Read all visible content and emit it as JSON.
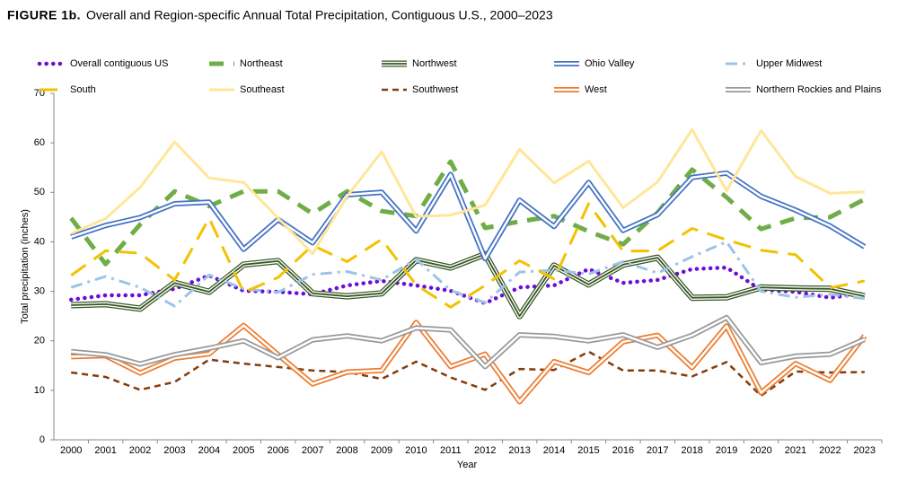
{
  "chart_data": {
    "type": "line",
    "figure_label": "FIGURE 1b.",
    "title": "Overall and Region-specific Annual Total Precipitation, Contiguous U.S., 2000–2023",
    "x_label": "Year",
    "y_label": "Total precipitation (inches)",
    "categories": [
      "2000",
      "2001",
      "2002",
      "2003",
      "2004",
      "2005",
      "2006",
      "2007",
      "2008",
      "2009",
      "2010",
      "2011",
      "2012",
      "2013",
      "2014",
      "2015",
      "2016",
      "2017",
      "2018",
      "2019",
      "2020",
      "2021",
      "2022",
      "2023"
    ],
    "ylim": [
      0,
      70
    ],
    "yticks": [
      0,
      10,
      20,
      30,
      40,
      50,
      60,
      70
    ],
    "grid": false,
    "legend": "top",
    "series": [
      {
        "name": "Overall contiguous US",
        "color": "#6a0dd8",
        "style": "dotted",
        "values": [
          28.3,
          29.2,
          29.2,
          30.5,
          33.2,
          30.1,
          29.9,
          29.4,
          31.2,
          32.1,
          31.2,
          30.1,
          27.6,
          30.8,
          31.2,
          34.5,
          31.7,
          32.3,
          34.5,
          34.8,
          30.3,
          29.9,
          28.7,
          29.6
        ]
      },
      {
        "name": "Northeast",
        "color": "#70ad47",
        "style": "dashed",
        "values": [
          44.8,
          35.5,
          43.5,
          50.2,
          47.2,
          50.2,
          50.2,
          45.7,
          50.2,
          46.2,
          45.2,
          56.2,
          42.8,
          44.1,
          45.2,
          42.1,
          39.5,
          45.9,
          54.6,
          49.0,
          42.6,
          44.8,
          45.0,
          48.6
        ]
      },
      {
        "name": "Northwest",
        "color": "#375623",
        "style": "triple",
        "values": [
          27.2,
          27.4,
          26.5,
          31.7,
          29.9,
          35.4,
          36.1,
          29.6,
          29.0,
          29.6,
          36.3,
          34.8,
          37.5,
          25.0,
          35.2,
          31.4,
          35.4,
          36.8,
          28.7,
          28.8,
          30.8,
          30.6,
          30.5,
          29.0
        ]
      },
      {
        "name": "Ohio Valley",
        "color": "#4472c4",
        "style": "double",
        "values": [
          41.0,
          43.3,
          44.9,
          47.7,
          48.0,
          38.5,
          44.5,
          39.8,
          49.5,
          50.0,
          42.2,
          53.6,
          36.6,
          48.4,
          43.1,
          52.0,
          42.3,
          45.5,
          53.0,
          53.9,
          49.2,
          46.4,
          43.2,
          39.0
        ]
      },
      {
        "name": "Upper Midwest",
        "color": "#9dc3e6",
        "style": "dashdot",
        "values": [
          30.8,
          33.0,
          30.8,
          27.0,
          33.3,
          30.5,
          29.8,
          33.4,
          34.0,
          32.3,
          36.5,
          30.2,
          27.7,
          33.9,
          34.3,
          33.5,
          36.0,
          33.7,
          37.0,
          40.0,
          30.0,
          28.8,
          29.4,
          28.5
        ]
      },
      {
        "name": "South",
        "color": "#f2c200",
        "style": "longdash",
        "values": [
          33.2,
          38.2,
          37.7,
          32.3,
          44.8,
          29.8,
          32.8,
          39.3,
          36.0,
          40.5,
          31.3,
          26.8,
          31.2,
          36.2,
          32.5,
          47.7,
          38.1,
          38.2,
          42.7,
          40.4,
          38.3,
          37.4,
          30.7,
          32.1
        ]
      },
      {
        "name": "Southeast",
        "color": "#ffe699",
        "style": "solid",
        "values": [
          41.7,
          44.7,
          51.0,
          60.2,
          52.9,
          52.0,
          44.8,
          37.6,
          49.2,
          58.2,
          45.1,
          45.4,
          47.4,
          58.7,
          51.9,
          56.3,
          46.9,
          52.1,
          62.7,
          50.3,
          62.5,
          53.2,
          49.8,
          50.1
        ]
      },
      {
        "name": "Southwest",
        "color": "#843c0c",
        "style": "shortdash",
        "values": [
          13.6,
          12.7,
          10.1,
          11.7,
          16.2,
          15.4,
          14.7,
          14.0,
          13.7,
          12.3,
          15.8,
          12.6,
          10.1,
          14.3,
          14.1,
          17.8,
          14.0,
          14.0,
          12.8,
          15.7,
          8.9,
          13.8,
          13.6,
          13.7
        ]
      },
      {
        "name": "West",
        "color": "#ed7d31",
        "style": "double",
        "values": [
          16.8,
          17.0,
          13.5,
          16.5,
          17.4,
          23.1,
          17.2,
          11.3,
          13.7,
          14.0,
          23.7,
          14.8,
          17.3,
          7.7,
          15.8,
          13.6,
          19.8,
          21.1,
          14.6,
          23.0,
          9.5,
          15.4,
          12.0,
          21.0
        ]
      },
      {
        "name": "Northern Rockies and Plains",
        "color": "#999999",
        "style": "double",
        "values": [
          17.8,
          17.2,
          15.3,
          17.2,
          18.5,
          20.0,
          16.6,
          20.2,
          21.0,
          20.0,
          22.6,
          22.2,
          14.8,
          21.2,
          20.9,
          20.0,
          21.2,
          18.7,
          21.1,
          24.7,
          15.6,
          16.9,
          17.3,
          20.3
        ]
      }
    ]
  }
}
